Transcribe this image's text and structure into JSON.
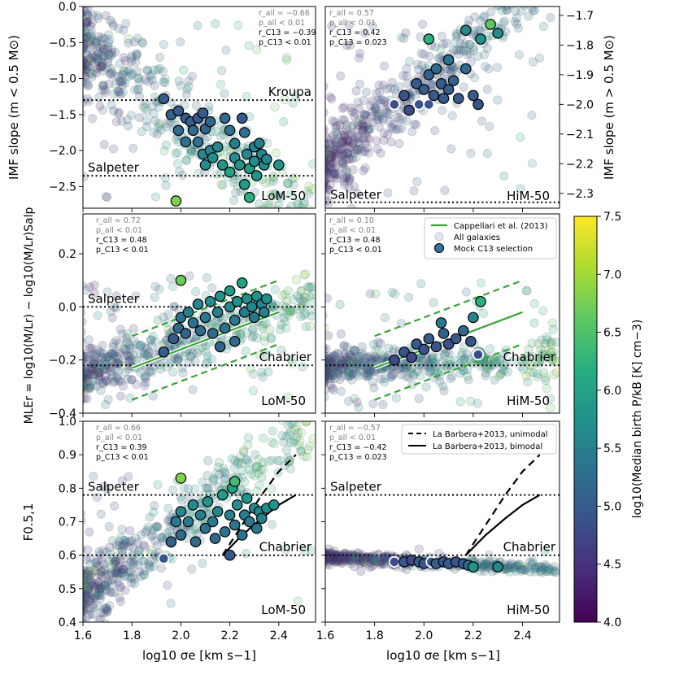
{
  "colorbar": {
    "label": "log10(Median birth P/kB [K] cm−3)",
    "min": 4.0,
    "max": 7.5,
    "ticks": [
      "4.0",
      "4.5",
      "5.0",
      "5.5",
      "6.0",
      "6.5",
      "7.0",
      "7.5"
    ],
    "colormap": [
      "#440154",
      "#472d7b",
      "#3b528b",
      "#2c728e",
      "#21918c",
      "#28ae80",
      "#5ec962",
      "#addc30",
      "#fde725"
    ]
  },
  "x_axis": {
    "label": "log10 σe [km s−1]",
    "range": [
      1.6,
      2.55
    ],
    "ticks": [
      "1.6",
      "1.8",
      "2.0",
      "2.2",
      "2.4"
    ]
  },
  "rows": [
    {
      "id": "imf-slope",
      "ylabel_left": "IMF slope (m < 0.5 M⊙)",
      "ylabel_right": "IMF slope (m > 0.5 M⊙)",
      "left_ylim": [
        -2.8,
        0.0
      ],
      "left_ticks": [
        "0.0",
        "−0.5",
        "−1.0",
        "−1.5",
        "−2.0",
        "−2.5"
      ],
      "right_ylim": [
        -2.35,
        -1.67
      ],
      "right_ticks": [
        "−1.7",
        "−1.8",
        "−1.9",
        "−2.0",
        "−2.1",
        "−2.2",
        "−2.3"
      ]
    },
    {
      "id": "mle",
      "ylabel": "MLEr = log10(M/Lr) − log10(M/Lr)Salp",
      "ylim": [
        -0.4,
        0.35
      ],
      "ticks": [
        "0.2",
        "0.0",
        "−0.2",
        "−0.4"
      ]
    },
    {
      "id": "f051",
      "ylabel": "F0.5,1",
      "ylim": [
        0.4,
        1.0
      ],
      "ticks": [
        "0.4",
        "0.5",
        "0.6",
        "0.7",
        "0.8",
        "0.9",
        "1.0"
      ]
    }
  ],
  "legends": {
    "mle_right": [
      {
        "label": "Cappellari et al. (2013)",
        "kind": "line",
        "color": "#3aa336"
      },
      {
        "label": "All galaxies",
        "kind": "faint-dot"
      },
      {
        "label": "Mock C13 selection",
        "kind": "dot"
      }
    ],
    "f_right": [
      {
        "label": "La Barbera+2013, unimodal",
        "kind": "dashed"
      },
      {
        "label": "La Barbera+2013, bimodal",
        "kind": "solid"
      }
    ]
  },
  "chart_data": [
    {
      "type": "scatter",
      "panel": "LoM-50",
      "ylabel": "IMF slope (m < 0.5 M⊙)",
      "xlim": [
        1.6,
        2.55
      ],
      "ylim": [
        -2.8,
        0.0
      ],
      "stats_all": [
        "r_all = −0.66",
        "p_all < 0.01"
      ],
      "stats_c13": [
        "r_C13 = −0.39",
        "p_C13 < 0.01"
      ],
      "reference_lines": [
        {
          "label": "Kroupa",
          "y": -1.3
        },
        {
          "label": "Salpeter",
          "y": -2.35
        }
      ],
      "selected": [
        [
          1.93,
          -1.28,
          5.0
        ],
        [
          1.96,
          -1.5,
          5.1
        ],
        [
          1.99,
          -1.45,
          5.0
        ],
        [
          1.99,
          -1.72,
          5.2
        ],
        [
          2.02,
          -1.55,
          5.0
        ],
        [
          2.02,
          -1.88,
          5.3
        ],
        [
          2.04,
          -1.6,
          5.0
        ],
        [
          2.05,
          -1.72,
          5.2
        ],
        [
          2.07,
          -1.55,
          5.0
        ],
        [
          2.07,
          -1.88,
          5.3
        ],
        [
          2.09,
          -1.48,
          5.0
        ],
        [
          2.09,
          -2.05,
          5.6
        ],
        [
          2.1,
          -1.7,
          5.1
        ],
        [
          2.1,
          -2.2,
          5.7
        ],
        [
          2.12,
          -1.6,
          5.1
        ],
        [
          2.12,
          -2.0,
          5.6
        ],
        [
          2.13,
          -2.1,
          5.7
        ],
        [
          2.15,
          -1.95,
          5.6
        ],
        [
          2.17,
          -2.2,
          5.8
        ],
        [
          2.18,
          -1.55,
          5.2
        ],
        [
          2.2,
          -1.72,
          5.3
        ],
        [
          2.2,
          -2.3,
          6.0
        ],
        [
          2.22,
          -2.1,
          5.7
        ],
        [
          2.22,
          -1.9,
          5.5
        ],
        [
          2.24,
          -2.2,
          5.8
        ],
        [
          2.25,
          -1.55,
          5.0
        ],
        [
          2.26,
          -1.75,
          5.3
        ],
        [
          2.27,
          -2.05,
          5.6
        ],
        [
          2.28,
          -2.25,
          5.9
        ],
        [
          2.3,
          -1.95,
          5.5
        ],
        [
          2.3,
          -2.15,
          5.7
        ],
        [
          2.31,
          -2.35,
          5.8
        ],
        [
          2.32,
          -1.9,
          5.5
        ],
        [
          2.33,
          -2.05,
          5.6
        ],
        [
          2.34,
          -2.2,
          5.7
        ],
        [
          2.35,
          -2.12,
          5.6
        ],
        [
          2.4,
          -2.2,
          5.8
        ],
        [
          2.26,
          -2.47,
          5.9
        ],
        [
          2.28,
          -2.65,
          6.2
        ],
        [
          1.98,
          -2.7,
          6.8
        ]
      ]
    },
    {
      "type": "scatter",
      "panel": "HiM-50",
      "ylabel": "IMF slope (m > 0.5 M⊙)",
      "xlim": [
        1.6,
        2.55
      ],
      "ylim": [
        -2.35,
        -1.67
      ],
      "stats_all": [
        "r_all = 0.57",
        "p_all < 0.01"
      ],
      "stats_c13": [
        "r_C13 = 0.42",
        "p_C13 = 0.023"
      ],
      "reference_lines": [
        {
          "label": "Salpeter",
          "y": -2.33
        }
      ],
      "selected": [
        [
          1.88,
          -2.0,
          4.8
        ],
        [
          1.92,
          -1.97,
          4.9
        ],
        [
          1.94,
          -2.02,
          4.8
        ],
        [
          1.97,
          -1.93,
          5.0
        ],
        [
          1.98,
          -2.0,
          4.9
        ],
        [
          2.0,
          -1.95,
          5.0
        ],
        [
          2.02,
          -1.9,
          5.1
        ],
        [
          2.02,
          -2.0,
          4.9
        ],
        [
          2.04,
          -1.97,
          5.0
        ],
        [
          2.05,
          -1.88,
          5.2
        ],
        [
          2.07,
          -1.93,
          5.0
        ],
        [
          2.08,
          -1.98,
          5.0
        ],
        [
          2.1,
          -1.85,
          5.3
        ],
        [
          2.1,
          -1.95,
          5.0
        ],
        [
          2.12,
          -1.92,
          5.1
        ],
        [
          2.14,
          -1.98,
          5.0
        ],
        [
          2.17,
          -1.88,
          5.2
        ],
        [
          2.2,
          -1.97,
          5.0
        ],
        [
          2.22,
          -2.0,
          4.9
        ],
        [
          2.17,
          -1.75,
          5.6
        ],
        [
          2.23,
          -1.78,
          5.8
        ],
        [
          2.3,
          -1.76,
          5.7
        ],
        [
          2.02,
          -1.78,
          6.2
        ],
        [
          2.27,
          -1.73,
          6.6
        ]
      ]
    },
    {
      "type": "scatter",
      "panel": "LoM-50",
      "ylabel": "MLEr",
      "xlim": [
        1.6,
        2.55
      ],
      "ylim": [
        -0.4,
        0.35
      ],
      "stats_all": [
        "r_all = 0.72",
        "p_all < 0.01"
      ],
      "stats_c13": [
        "r_C13 = 0.48",
        "p_C13 < 0.01"
      ],
      "reference_lines": [
        {
          "label": "Salpeter",
          "y": 0.0
        },
        {
          "label": "Chabrier",
          "y": -0.22
        }
      ],
      "cappellari_fit": {
        "x": [
          1.8,
          2.4
        ],
        "y": [
          -0.23,
          -0.02
        ],
        "scatter": 0.12
      },
      "selected": [
        [
          1.93,
          -0.17,
          5.0
        ],
        [
          1.97,
          -0.12,
          5.0
        ],
        [
          1.99,
          -0.08,
          5.2
        ],
        [
          2.0,
          -0.04,
          5.3
        ],
        [
          2.02,
          -0.1,
          5.1
        ],
        [
          2.03,
          -0.02,
          5.5
        ],
        [
          2.05,
          -0.06,
          5.3
        ],
        [
          2.07,
          0.01,
          5.6
        ],
        [
          2.08,
          -0.09,
          5.2
        ],
        [
          2.1,
          -0.04,
          5.4
        ],
        [
          2.12,
          0.02,
          5.7
        ],
        [
          2.13,
          -0.1,
          5.2
        ],
        [
          2.15,
          -0.02,
          5.5
        ],
        [
          2.16,
          0.04,
          5.8
        ],
        [
          2.18,
          -0.08,
          5.3
        ],
        [
          2.2,
          0.0,
          5.6
        ],
        [
          2.2,
          0.06,
          5.9
        ],
        [
          2.22,
          -0.05,
          5.4
        ],
        [
          2.23,
          0.02,
          5.7
        ],
        [
          2.25,
          0.09,
          6.0
        ],
        [
          2.26,
          -0.02,
          5.5
        ],
        [
          2.27,
          0.03,
          5.7
        ],
        [
          2.29,
          0.0,
          5.6
        ],
        [
          2.3,
          -0.04,
          5.4
        ],
        [
          2.31,
          0.04,
          5.8
        ],
        [
          2.33,
          0.01,
          5.6
        ],
        [
          2.34,
          -0.02,
          5.5
        ],
        [
          2.35,
          0.03,
          5.7
        ],
        [
          2.22,
          -0.13,
          5.2
        ],
        [
          2.16,
          -0.15,
          5.1
        ],
        [
          2.0,
          0.1,
          6.7
        ]
      ]
    },
    {
      "type": "scatter",
      "panel": "HiM-50",
      "ylabel": "MLEr",
      "xlim": [
        1.6,
        2.55
      ],
      "ylim": [
        -0.4,
        0.35
      ],
      "stats_all": [
        "r_all = 0.10",
        "p_all < 0.01"
      ],
      "stats_c13": [
        "r_C13 = 0.48",
        "p_C13 < 0.01"
      ],
      "reference_lines": [
        {
          "label": "Chabrier",
          "y": -0.22
        }
      ],
      "cappellari_fit": {
        "x": [
          1.8,
          2.4
        ],
        "y": [
          -0.23,
          -0.02
        ],
        "scatter": 0.12
      },
      "selected": [
        [
          1.88,
          -0.2,
          4.8
        ],
        [
          1.92,
          -0.17,
          4.9
        ],
        [
          1.95,
          -0.19,
          4.8
        ],
        [
          1.97,
          -0.14,
          5.0
        ],
        [
          2.0,
          -0.16,
          4.9
        ],
        [
          2.02,
          -0.12,
          5.0
        ],
        [
          2.05,
          -0.15,
          4.9
        ],
        [
          2.08,
          -0.1,
          5.1
        ],
        [
          2.1,
          -0.14,
          4.9
        ],
        [
          2.13,
          -0.12,
          5.0
        ],
        [
          2.16,
          -0.09,
          5.2
        ],
        [
          2.19,
          -0.13,
          4.9
        ],
        [
          2.22,
          -0.18,
          4.8
        ],
        [
          2.07,
          -0.06,
          5.4
        ],
        [
          2.2,
          -0.04,
          5.6
        ],
        [
          2.23,
          0.02,
          6.2
        ]
      ]
    },
    {
      "type": "scatter",
      "panel": "LoM-50",
      "ylabel": "F0.5,1",
      "xlim": [
        1.6,
        2.55
      ],
      "ylim": [
        0.4,
        1.0
      ],
      "stats_all": [
        "r_all = 0.66",
        "p_all < 0.01"
      ],
      "stats_c13": [
        "r_C13 = 0.39",
        "p_C13 < 0.01"
      ],
      "reference_lines": [
        {
          "label": "Salpeter",
          "y": 0.78
        },
        {
          "label": "Chabrier",
          "y": 0.6
        }
      ],
      "la_barbera_unimodal": {
        "x": [
          2.17,
          2.25,
          2.33,
          2.4,
          2.47
        ],
        "y": [
          0.6,
          0.69,
          0.78,
          0.85,
          0.9
        ]
      },
      "la_barbera_bimodal": {
        "x": [
          2.17,
          2.25,
          2.33,
          2.4,
          2.47
        ],
        "y": [
          0.6,
          0.66,
          0.71,
          0.75,
          0.78
        ]
      },
      "selected": [
        [
          1.93,
          0.59,
          4.9
        ],
        [
          1.96,
          0.64,
          5.1
        ],
        [
          1.98,
          0.7,
          5.4
        ],
        [
          2.0,
          0.73,
          5.6
        ],
        [
          2.0,
          0.66,
          5.2
        ],
        [
          2.03,
          0.7,
          5.4
        ],
        [
          2.05,
          0.75,
          5.7
        ],
        [
          2.06,
          0.64,
          5.2
        ],
        [
          2.08,
          0.72,
          5.5
        ],
        [
          2.1,
          0.68,
          5.3
        ],
        [
          2.11,
          0.76,
          5.8
        ],
        [
          2.13,
          0.7,
          5.4
        ],
        [
          2.14,
          0.65,
          5.2
        ],
        [
          2.15,
          0.73,
          5.6
        ],
        [
          2.17,
          0.78,
          5.9
        ],
        [
          2.18,
          0.67,
          5.3
        ],
        [
          2.2,
          0.72,
          5.5
        ],
        [
          2.21,
          0.8,
          6.0
        ],
        [
          2.22,
          0.69,
          5.4
        ],
        [
          2.23,
          0.75,
          5.7
        ],
        [
          2.25,
          0.66,
          5.3
        ],
        [
          2.26,
          0.72,
          5.5
        ],
        [
          2.27,
          0.77,
          5.8
        ],
        [
          2.28,
          0.7,
          5.4
        ],
        [
          2.3,
          0.74,
          5.6
        ],
        [
          2.31,
          0.68,
          5.4
        ],
        [
          2.32,
          0.73,
          5.6
        ],
        [
          2.33,
          0.71,
          5.5
        ],
        [
          2.35,
          0.74,
          5.7
        ],
        [
          2.38,
          0.75,
          5.8
        ],
        [
          2.2,
          0.6,
          5.0
        ],
        [
          2.0,
          0.83,
          6.8
        ],
        [
          2.22,
          0.82,
          6.4
        ]
      ]
    },
    {
      "type": "scatter",
      "panel": "HiM-50",
      "ylabel": "F0.5,1",
      "xlim": [
        1.6,
        2.55
      ],
      "ylim": [
        0.4,
        1.0
      ],
      "stats_all": [
        "r_all = −0.57",
        "p_all < 0.01"
      ],
      "stats_c13": [
        "r_C13 = −0.42",
        "p_C13 = 0.023"
      ],
      "reference_lines": [
        {
          "label": "Salpeter",
          "y": 0.78
        },
        {
          "label": "Chabrier",
          "y": 0.6
        }
      ],
      "la_barbera_unimodal": {
        "x": [
          2.17,
          2.25,
          2.33,
          2.4,
          2.47
        ],
        "y": [
          0.6,
          0.69,
          0.78,
          0.85,
          0.9
        ]
      },
      "la_barbera_bimodal": {
        "x": [
          2.17,
          2.25,
          2.33,
          2.4,
          2.47
        ],
        "y": [
          0.6,
          0.66,
          0.71,
          0.75,
          0.78
        ]
      },
      "selected": [
        [
          1.88,
          0.58,
          4.8
        ],
        [
          1.92,
          0.58,
          4.9
        ],
        [
          1.95,
          0.585,
          4.8
        ],
        [
          1.98,
          0.58,
          5.0
        ],
        [
          2.0,
          0.575,
          4.9
        ],
        [
          2.03,
          0.58,
          4.9
        ],
        [
          2.05,
          0.575,
          5.0
        ],
        [
          2.08,
          0.58,
          4.9
        ],
        [
          2.1,
          0.575,
          5.0
        ],
        [
          2.13,
          0.58,
          4.9
        ],
        [
          2.16,
          0.575,
          5.0
        ],
        [
          2.18,
          0.57,
          5.2
        ],
        [
          2.2,
          0.565,
          5.8
        ],
        [
          2.3,
          0.565,
          5.6
        ]
      ]
    }
  ],
  "panel_labels": [
    "LoM-50",
    "HiM-50",
    "LoM-50",
    "HiM-50",
    "LoM-50",
    "HiM-50"
  ]
}
